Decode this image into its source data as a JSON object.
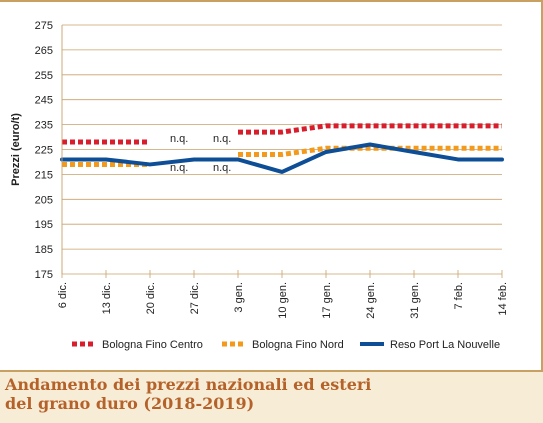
{
  "chart_data": {
    "type": "line",
    "title": "",
    "xlabel": "",
    "ylabel": "Prezzi (euro/t)",
    "ylim": [
      175,
      275
    ],
    "yticks": [
      175,
      185,
      195,
      205,
      215,
      225,
      235,
      245,
      255,
      265,
      275
    ],
    "categories": [
      "6 dic.",
      "13 dic.",
      "20 dic.",
      "27 dic.",
      "3 gen.",
      "10 gen.",
      "17 gen.",
      "24 gen.",
      "31 gen.",
      "7 feb.",
      "14 feb."
    ],
    "series": [
      {
        "name": "Bologna Fino Centro",
        "color": "#d81e2c",
        "style": "dotted",
        "values": [
          228,
          228,
          228,
          null,
          232,
          232,
          234.5,
          234.5,
          234.5,
          234.5,
          234.5
        ]
      },
      {
        "name": "Bologna Fino Nord",
        "color": "#f39a1d",
        "style": "dotted",
        "values": [
          219,
          219,
          219,
          null,
          223,
          223,
          225.5,
          225.5,
          225.5,
          225.5,
          225.5
        ]
      },
      {
        "name": "Reso Port La Nouvelle",
        "color": "#0d4e96",
        "style": "solid",
        "values": [
          221,
          221,
          219,
          221,
          221,
          216,
          224,
          227,
          224,
          221,
          221
        ]
      }
    ],
    "annotations": [
      "n.q.",
      "n.q.",
      "n.q.",
      "n.q."
    ],
    "legend_position": "bottom"
  },
  "caption": {
    "line1": "Andamento dei prezzi nazionali ed esteri",
    "line2": "del grano duro (2018-2019)"
  }
}
